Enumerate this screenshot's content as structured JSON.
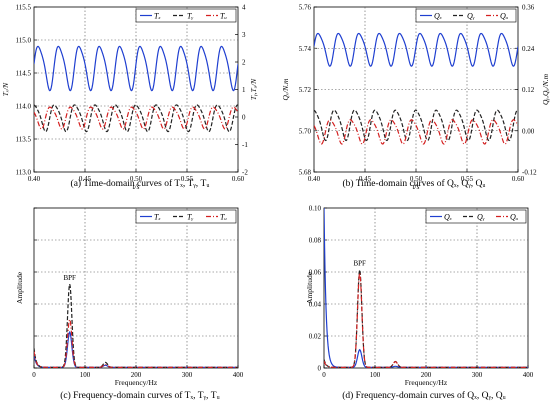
{
  "chart_data": [
    {
      "type": "line",
      "panel": "a",
      "caption": "(a) Time-domain curves of Tₓ, Tᵧ, Tᵤ",
      "xlabel": "t/s",
      "ylabel_left": "Tₓ/N",
      "ylabel_right": "Tᵧ,Tᵤ/N",
      "xlim": [
        0.4,
        0.6
      ],
      "ylim_left": [
        113.0,
        115.5
      ],
      "ylim_right": [
        -2,
        4
      ],
      "xticks": [
        "0.40",
        "0.45",
        "0.50",
        "0.55",
        "0.60"
      ],
      "yticks_left": [
        "113.0",
        "113.5",
        "114.0",
        "114.5",
        "115.0",
        "115.5"
      ],
      "yticks_right": [
        "-2",
        "-1",
        "0",
        "1",
        "2",
        "3",
        "4"
      ],
      "grid": true,
      "legend": "top-right",
      "series": [
        {
          "name": "Tₓ",
          "axis": "left",
          "style": "solid",
          "color": "#1f3fd0",
          "mean": 114.6,
          "amplitude": 0.38,
          "cycles": 10
        },
        {
          "name": "Tᵧ",
          "axis": "right",
          "style": "dashed",
          "color": "#222222",
          "mean": 0.0,
          "amplitude": 0.55,
          "cycles": 10
        },
        {
          "name": "Tᵤ",
          "axis": "right",
          "style": "dashdot",
          "color": "#d42020",
          "mean": 0.0,
          "amplitude": 0.45,
          "cycles": 10
        }
      ]
    },
    {
      "type": "line",
      "panel": "b",
      "caption": "(b) Time-domain curves of Qₓ, Qᵧ, Qᵤ",
      "xlabel": "t/s",
      "ylabel_left": "Qₓ/N.m",
      "ylabel_right": "Qᵧ,Qᵤ/N.m",
      "xlim": [
        0.4,
        0.6
      ],
      "ylim_left": [
        5.68,
        5.76
      ],
      "ylim_right": [
        -0.12,
        0.36
      ],
      "xticks": [
        "0.40",
        "0.45",
        "0.50",
        "0.55",
        "0.60"
      ],
      "yticks_left": [
        "5.68",
        "5.70",
        "5.72",
        "5.74",
        "5.76"
      ],
      "yticks_right": [
        "-0.12",
        "0.00",
        "0.12",
        "0.24",
        "0.36"
      ],
      "grid": true,
      "legend": "top-right",
      "series": [
        {
          "name": "Qₓ",
          "axis": "left",
          "style": "solid",
          "color": "#1f3fd0",
          "mean": 5.74,
          "amplitude": 0.009,
          "cycles": 10
        },
        {
          "name": "Qᵧ",
          "axis": "right",
          "style": "dashed",
          "color": "#222222",
          "mean": 0.02,
          "amplitude": 0.05,
          "cycles": 10
        },
        {
          "name": "Qᵤ",
          "axis": "right",
          "style": "dashdot",
          "color": "#d42020",
          "mean": 0.0,
          "amplitude": 0.04,
          "cycles": 10
        }
      ]
    },
    {
      "type": "line",
      "panel": "c",
      "caption": "(c) Frequency-domain curves of Tₓ, Tᵧ, Tᵤ",
      "xlabel": "Frequency/Hz",
      "ylabel": "Amplitude",
      "xlim": [
        0,
        400
      ],
      "ylim": [
        0,
        1.0
      ],
      "xticks": [
        "0",
        "100",
        "200",
        "300",
        "400"
      ],
      "annotation": "BPF",
      "grid": true,
      "legend": "top-right",
      "series": [
        {
          "name": "Tₓ",
          "style": "solid",
          "color": "#1f3fd0",
          "peak_x": 70,
          "peak": 0.22,
          "dc": 0.08
        },
        {
          "name": "Tᵧ",
          "style": "dashed",
          "color": "#222222",
          "peak_x": 70,
          "peak": 0.52,
          "dc": 0.12
        },
        {
          "name": "Tᵤ",
          "style": "dashdot",
          "color": "#d42020",
          "peak_x": 70,
          "peak": 0.3,
          "dc": 0.1
        }
      ]
    },
    {
      "type": "line",
      "panel": "d",
      "caption": "(d) Frequency-domain curves of Qₓ, Qᵧ, Qᵤ",
      "xlabel": "Frequency/Hz",
      "ylabel": "Amplitude",
      "xlim": [
        0,
        400
      ],
      "ylim": [
        0,
        0.1
      ],
      "xticks": [
        "0",
        "100",
        "200",
        "300",
        "400"
      ],
      "yticks": [
        "0",
        "0.02",
        "0.04",
        "0.06",
        "0.08",
        "0.10"
      ],
      "annotation": "BPF",
      "grid": true,
      "legend": "top-right",
      "series": [
        {
          "name": "Qₓ",
          "style": "solid",
          "color": "#1f3fd0",
          "peak_x": 70,
          "peak": 0.011,
          "dc": 0.1
        },
        {
          "name": "Qᵧ",
          "style": "dashed",
          "color": "#222222",
          "peak_x": 70,
          "peak": 0.061,
          "dc": 0.005
        },
        {
          "name": "Qᵤ",
          "style": "dashdot",
          "color": "#d42020",
          "peak_x": 70,
          "peak": 0.059,
          "dc": 0.004
        }
      ]
    }
  ]
}
